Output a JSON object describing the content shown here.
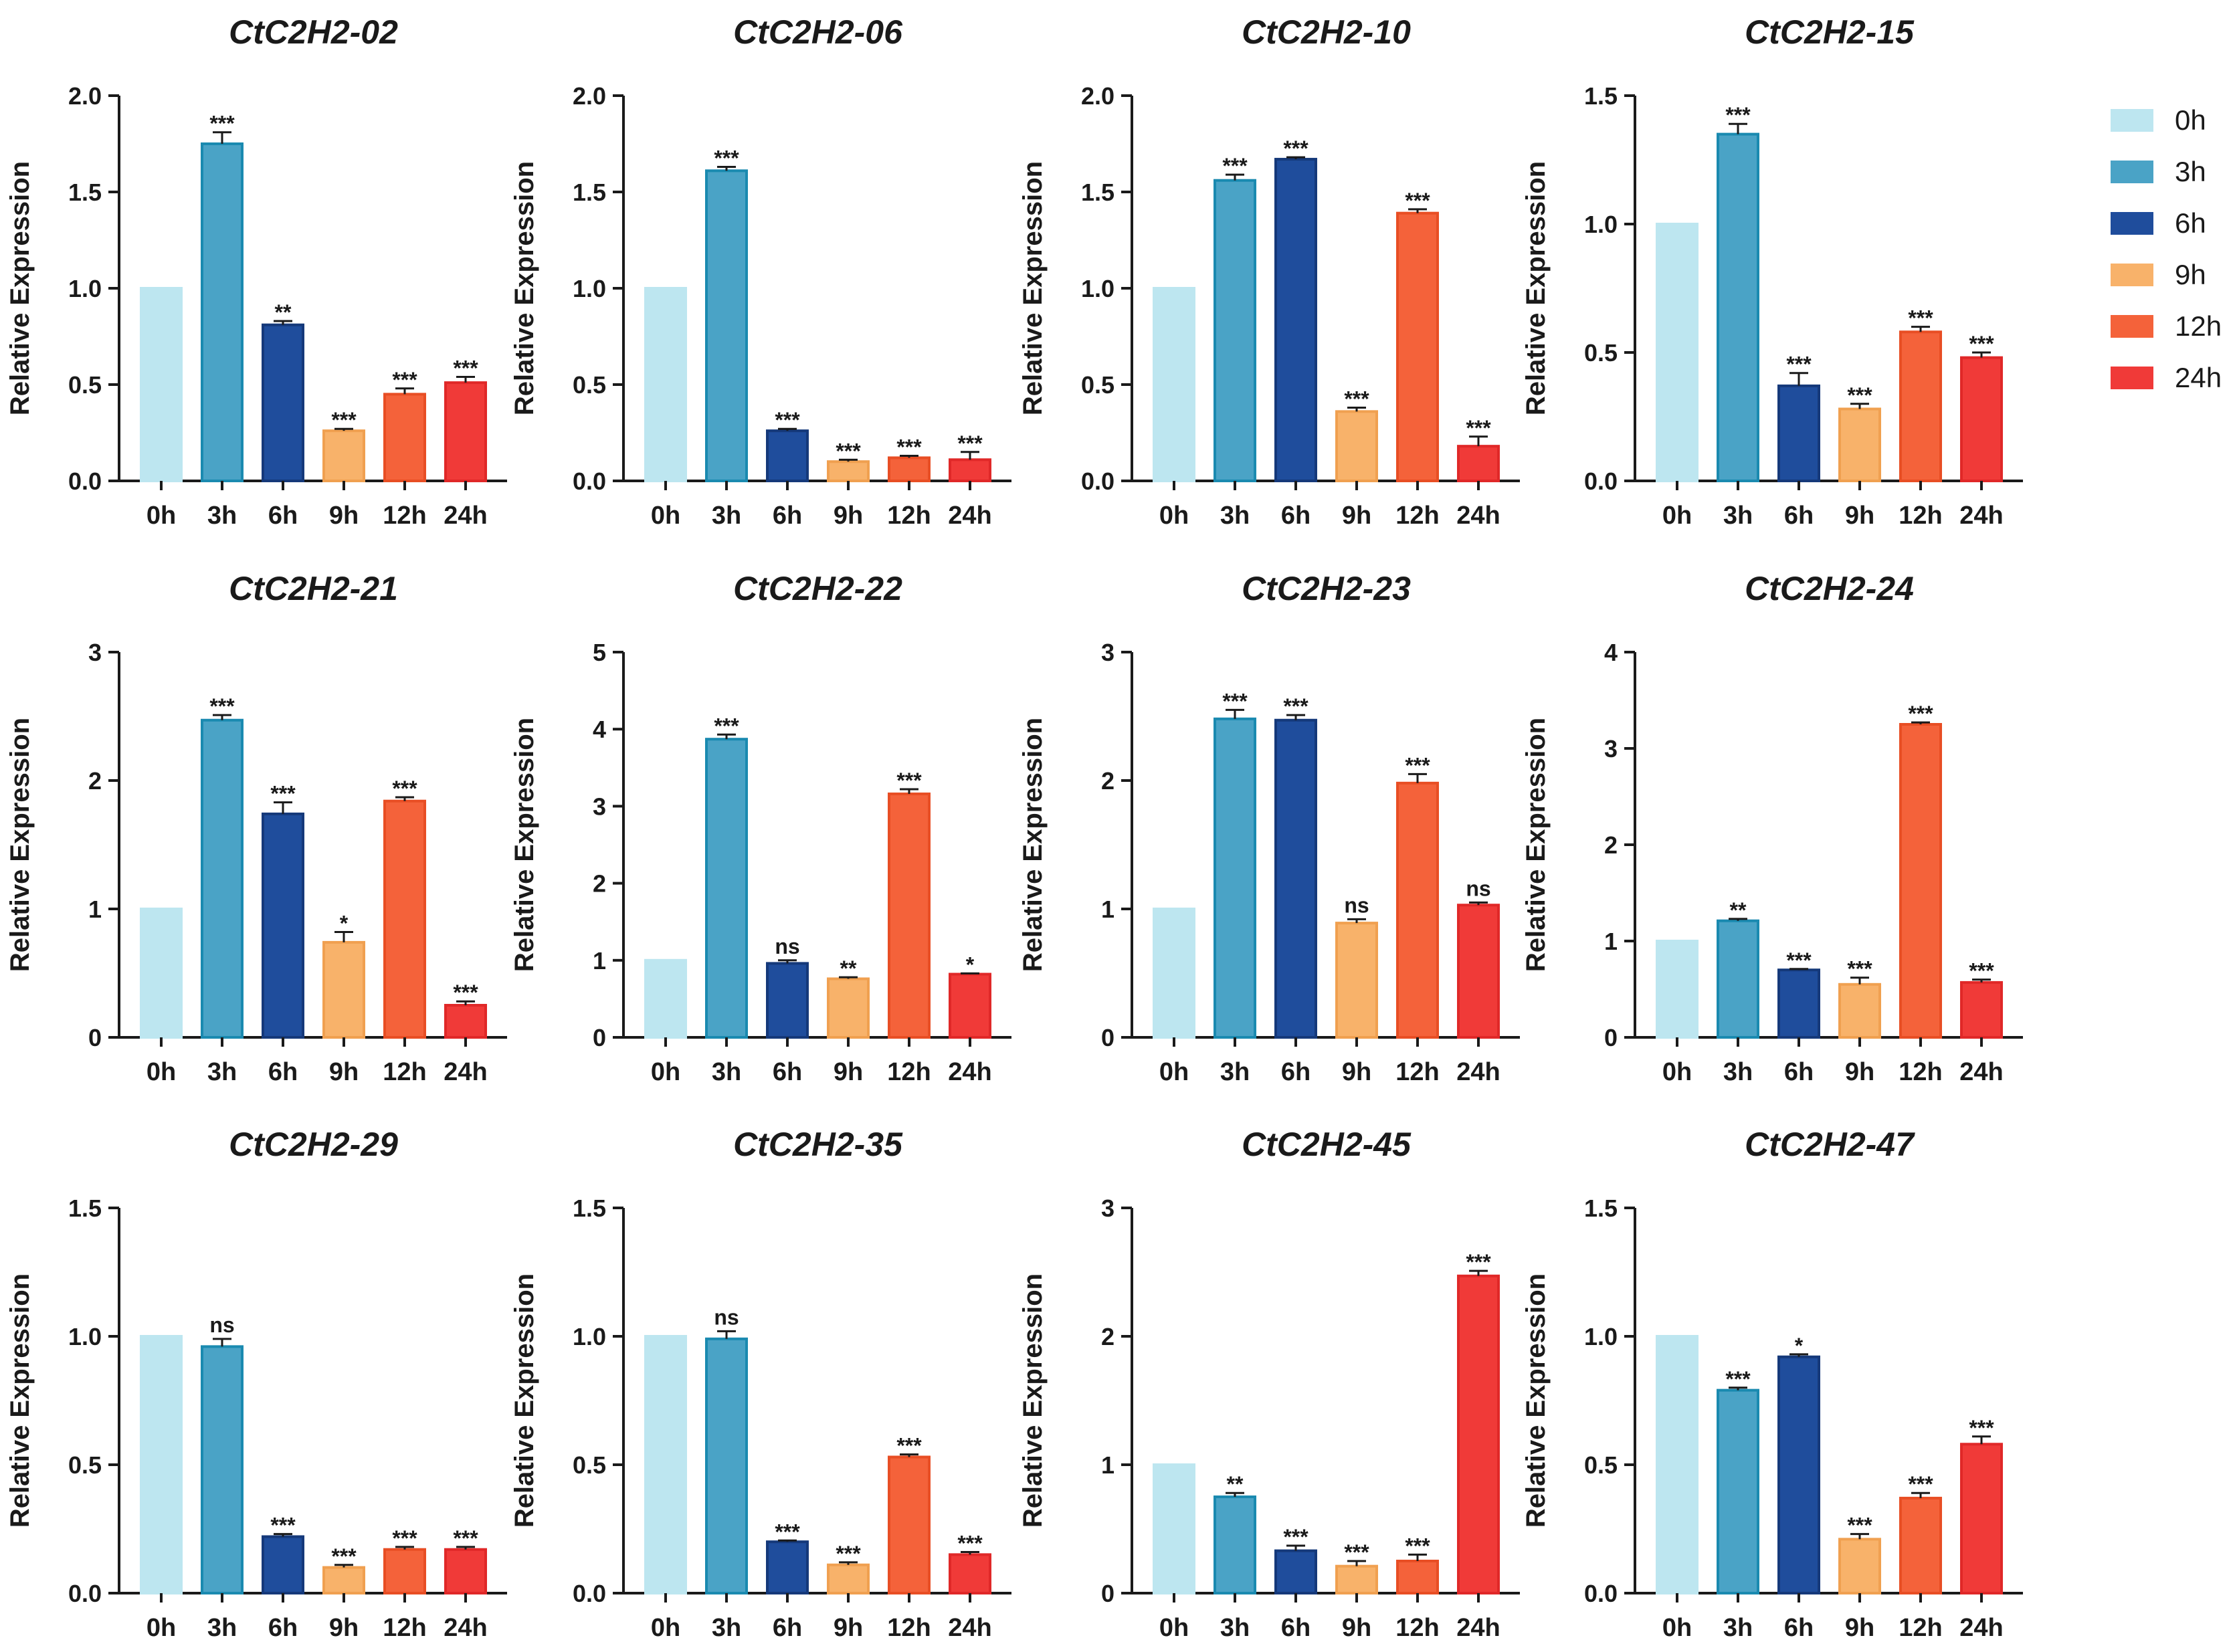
{
  "figure": {
    "ylabel": "Relative Expression",
    "time_labels": [
      "0h",
      "3h",
      "6h",
      "9h",
      "12h",
      "24h"
    ],
    "colors": {
      "0h": "#bde6f0",
      "3h": "#4aa3c6",
      "6h": "#1f4d9c",
      "9h": "#f8b26a",
      "12h": "#f4623a",
      "24h": "#f03a38"
    },
    "edge_colors": {
      "0h": "#bde6f0",
      "3h": "#1a8ab0",
      "6h": "#15397a",
      "9h": "#f0a050",
      "12h": "#e84e24",
      "24h": "#e02828"
    }
  },
  "legend": {
    "position": "top-right",
    "items": [
      {
        "label": "0h",
        "key": "0h"
      },
      {
        "label": "3h",
        "key": "3h"
      },
      {
        "label": "6h",
        "key": "6h"
      },
      {
        "label": "9h",
        "key": "9h"
      },
      {
        "label": "12h",
        "key": "12h"
      },
      {
        "label": "24h",
        "key": "24h"
      }
    ]
  },
  "chart_data": [
    {
      "type": "bar",
      "title": "CtC2H2-02",
      "xlabel": "",
      "ylabel": "Relative Expression",
      "categories": [
        "0h",
        "3h",
        "6h",
        "9h",
        "12h",
        "24h"
      ],
      "values": [
        1.0,
        1.75,
        0.81,
        0.26,
        0.45,
        0.51
      ],
      "errors": [
        0,
        0.06,
        0.02,
        0.01,
        0.03,
        0.03
      ],
      "significance": [
        "",
        "***",
        "**",
        "***",
        "***",
        "***"
      ],
      "ylim": [
        0,
        2.0
      ],
      "yticks": [
        0.0,
        0.5,
        1.0,
        1.5,
        2.0
      ],
      "ytick_labels": [
        "0.0",
        "0.5",
        "1.0",
        "1.5",
        "2.0"
      ]
    },
    {
      "type": "bar",
      "title": "CtC2H2-06",
      "xlabel": "",
      "ylabel": "Relative Expression",
      "categories": [
        "0h",
        "3h",
        "6h",
        "9h",
        "12h",
        "24h"
      ],
      "values": [
        1.0,
        1.61,
        0.26,
        0.1,
        0.12,
        0.11
      ],
      "errors": [
        0,
        0.02,
        0.01,
        0.01,
        0.01,
        0.04
      ],
      "significance": [
        "",
        "***",
        "***",
        "***",
        "***",
        "***"
      ],
      "ylim": [
        0,
        2.0
      ],
      "yticks": [
        0.0,
        0.5,
        1.0,
        1.5,
        2.0
      ],
      "ytick_labels": [
        "0.0",
        "0.5",
        "1.0",
        "1.5",
        "2.0"
      ]
    },
    {
      "type": "bar",
      "title": "CtC2H2-10",
      "xlabel": "",
      "ylabel": "Relative Expression",
      "categories": [
        "0h",
        "3h",
        "6h",
        "9h",
        "12h",
        "24h"
      ],
      "values": [
        1.0,
        1.56,
        1.67,
        0.36,
        1.39,
        0.18
      ],
      "errors": [
        0,
        0.03,
        0.01,
        0.02,
        0.02,
        0.05
      ],
      "significance": [
        "",
        "***",
        "***",
        "***",
        "***",
        "***"
      ],
      "ylim": [
        0,
        2.0
      ],
      "yticks": [
        0.0,
        0.5,
        1.0,
        1.5,
        2.0
      ],
      "ytick_labels": [
        "0.0",
        "0.5",
        "1.0",
        "1.5",
        "2.0"
      ]
    },
    {
      "type": "bar",
      "title": "CtC2H2-15",
      "xlabel": "",
      "ylabel": "Relative Expression",
      "categories": [
        "0h",
        "3h",
        "6h",
        "9h",
        "12h",
        "24h"
      ],
      "values": [
        1.0,
        1.35,
        0.37,
        0.28,
        0.58,
        0.48
      ],
      "errors": [
        0,
        0.04,
        0.05,
        0.02,
        0.02,
        0.02
      ],
      "significance": [
        "",
        "***",
        "***",
        "***",
        "***",
        "***"
      ],
      "ylim": [
        0,
        1.5
      ],
      "yticks": [
        0.0,
        0.5,
        1.0,
        1.5
      ],
      "ytick_labels": [
        "0.0",
        "0.5",
        "1.0",
        "1.5"
      ]
    },
    {
      "type": "bar",
      "title": "CtC2H2-21",
      "xlabel": "",
      "ylabel": "Relative Expression",
      "categories": [
        "0h",
        "3h",
        "6h",
        "9h",
        "12h",
        "24h"
      ],
      "values": [
        1.0,
        2.47,
        1.74,
        0.74,
        1.84,
        0.25
      ],
      "errors": [
        0,
        0.04,
        0.09,
        0.08,
        0.03,
        0.03
      ],
      "significance": [
        "",
        "***",
        "***",
        "*",
        "***",
        "***"
      ],
      "ylim": [
        0,
        3
      ],
      "yticks": [
        0,
        1,
        2,
        3
      ],
      "ytick_labels": [
        "0",
        "1",
        "2",
        "3"
      ]
    },
    {
      "type": "bar",
      "title": "CtC2H2-22",
      "xlabel": "",
      "ylabel": "Relative Expression",
      "categories": [
        "0h",
        "3h",
        "6h",
        "9h",
        "12h",
        "24h"
      ],
      "values": [
        1.0,
        3.87,
        0.96,
        0.76,
        3.16,
        0.82
      ],
      "errors": [
        0,
        0.06,
        0.04,
        0.02,
        0.06,
        0.01
      ],
      "significance": [
        "",
        "***",
        "ns",
        "**",
        "***",
        "*"
      ],
      "ylim": [
        0,
        5
      ],
      "yticks": [
        0,
        1,
        2,
        3,
        4,
        5
      ],
      "ytick_labels": [
        "0",
        "1",
        "2",
        "3",
        "4",
        "5"
      ]
    },
    {
      "type": "bar",
      "title": "CtC2H2-23",
      "xlabel": "",
      "ylabel": "Relative Expression",
      "categories": [
        "0h",
        "3h",
        "6h",
        "9h",
        "12h",
        "24h"
      ],
      "values": [
        1.0,
        2.48,
        2.47,
        0.89,
        1.98,
        1.03
      ],
      "errors": [
        0,
        0.07,
        0.04,
        0.03,
        0.07,
        0.02
      ],
      "significance": [
        "",
        "***",
        "***",
        "ns",
        "***",
        "ns"
      ],
      "ylim": [
        0,
        3
      ],
      "yticks": [
        0,
        1,
        2,
        3
      ],
      "ytick_labels": [
        "0",
        "1",
        "2",
        "3"
      ]
    },
    {
      "type": "bar",
      "title": "CtC2H2-24",
      "xlabel": "",
      "ylabel": "Relative Expression",
      "categories": [
        "0h",
        "3h",
        "6h",
        "9h",
        "12h",
        "24h"
      ],
      "values": [
        1.0,
        1.21,
        0.7,
        0.55,
        3.25,
        0.57
      ],
      "errors": [
        0,
        0.02,
        0.01,
        0.07,
        0.02,
        0.03
      ],
      "significance": [
        "",
        "**",
        "***",
        "***",
        "***",
        "***"
      ],
      "ylim": [
        0,
        4
      ],
      "yticks": [
        0,
        1,
        2,
        3,
        4
      ],
      "ytick_labels": [
        "0",
        "1",
        "2",
        "3",
        "4"
      ]
    },
    {
      "type": "bar",
      "title": "CtC2H2-29",
      "xlabel": "",
      "ylabel": "Relative Expression",
      "categories": [
        "0h",
        "3h",
        "6h",
        "9h",
        "12h",
        "24h"
      ],
      "values": [
        1.0,
        0.96,
        0.22,
        0.1,
        0.17,
        0.17
      ],
      "errors": [
        0,
        0.03,
        0.01,
        0.01,
        0.01,
        0.01
      ],
      "significance": [
        "",
        "ns",
        "***",
        "***",
        "***",
        "***"
      ],
      "ylim": [
        0,
        1.5
      ],
      "yticks": [
        0.0,
        0.5,
        1.0,
        1.5
      ],
      "ytick_labels": [
        "0.0",
        "0.5",
        "1.0",
        "1.5"
      ]
    },
    {
      "type": "bar",
      "title": "CtC2H2-35",
      "xlabel": "",
      "ylabel": "Relative Expression",
      "categories": [
        "0h",
        "3h",
        "6h",
        "9h",
        "12h",
        "24h"
      ],
      "values": [
        1.0,
        0.99,
        0.2,
        0.11,
        0.53,
        0.15
      ],
      "errors": [
        0,
        0.03,
        0.005,
        0.01,
        0.01,
        0.01
      ],
      "significance": [
        "",
        "ns",
        "***",
        "***",
        "***",
        "***"
      ],
      "ylim": [
        0,
        1.5
      ],
      "yticks": [
        0.0,
        0.5,
        1.0,
        1.5
      ],
      "ytick_labels": [
        "0.0",
        "0.5",
        "1.0",
        "1.5"
      ]
    },
    {
      "type": "bar",
      "title": "CtC2H2-45",
      "xlabel": "",
      "ylabel": "Relative Expression",
      "categories": [
        "0h",
        "3h",
        "6h",
        "9h",
        "12h",
        "24h"
      ],
      "values": [
        1.0,
        0.75,
        0.33,
        0.21,
        0.25,
        2.47
      ],
      "errors": [
        0,
        0.03,
        0.04,
        0.04,
        0.05,
        0.04
      ],
      "significance": [
        "",
        "**",
        "***",
        "***",
        "***",
        "***"
      ],
      "ylim": [
        0,
        3
      ],
      "yticks": [
        0,
        1,
        2,
        3
      ],
      "ytick_labels": [
        "0",
        "1",
        "2",
        "3"
      ]
    },
    {
      "type": "bar",
      "title": "CtC2H2-47",
      "xlabel": "",
      "ylabel": "Relative Expression",
      "categories": [
        "0h",
        "3h",
        "6h",
        "9h",
        "12h",
        "24h"
      ],
      "values": [
        1.0,
        0.79,
        0.92,
        0.21,
        0.37,
        0.58
      ],
      "errors": [
        0,
        0.01,
        0.01,
        0.02,
        0.02,
        0.03
      ],
      "significance": [
        "",
        "***",
        "*",
        "***",
        "***",
        "***"
      ],
      "ylim": [
        0,
        1.5
      ],
      "yticks": [
        0.0,
        0.5,
        1.0,
        1.5
      ],
      "ytick_labels": [
        "0.0",
        "0.5",
        "1.0",
        "1.5"
      ]
    }
  ]
}
